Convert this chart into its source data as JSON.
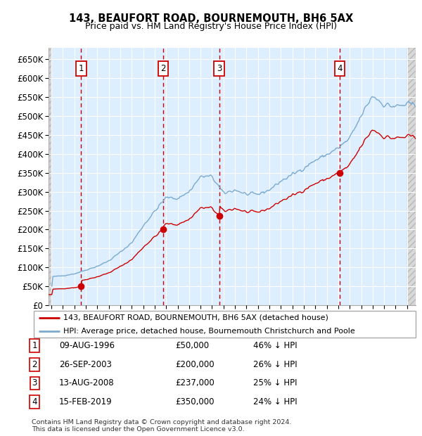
{
  "title": "143, BEAUFORT ROAD, BOURNEMOUTH, BH6 5AX",
  "subtitle": "Price paid vs. HM Land Registry's House Price Index (HPI)",
  "ylim": [
    0,
    680000
  ],
  "yticks": [
    0,
    50000,
    100000,
    150000,
    200000,
    250000,
    300000,
    350000,
    400000,
    450000,
    500000,
    550000,
    600000,
    650000
  ],
  "ytick_labels": [
    "£0",
    "£50K",
    "£100K",
    "£150K",
    "£200K",
    "£250K",
    "£300K",
    "£350K",
    "£400K",
    "£450K",
    "£500K",
    "£550K",
    "£600K",
    "£650K"
  ],
  "xlim_start": 1993.75,
  "xlim_end": 2025.75,
  "plot_bg_color": "#ddeeff",
  "grid_color": "#ffffff",
  "sale_color": "#cc0000",
  "hpi_color": "#7aaad0",
  "transactions": [
    {
      "num": 1,
      "year": 1996.6,
      "price": 50000,
      "date": "09-AUG-1996",
      "pct": "46% ↓ HPI"
    },
    {
      "num": 2,
      "year": 2003.73,
      "price": 200000,
      "date": "26-SEP-2003",
      "pct": "26% ↓ HPI"
    },
    {
      "num": 3,
      "year": 2008.62,
      "price": 237000,
      "date": "13-AUG-2008",
      "pct": "25% ↓ HPI"
    },
    {
      "num": 4,
      "year": 2019.12,
      "price": 350000,
      "date": "15-FEB-2019",
      "pct": "24% ↓ HPI"
    }
  ],
  "legend_sale_label": "143, BEAUFORT ROAD, BOURNEMOUTH, BH6 5AX (detached house)",
  "legend_hpi_label": "HPI: Average price, detached house, Bournemouth Christchurch and Poole",
  "table_rows": [
    [
      "1",
      "09-AUG-1996",
      "£50,000",
      "46% ↓ HPI"
    ],
    [
      "2",
      "26-SEP-2003",
      "£200,000",
      "26% ↓ HPI"
    ],
    [
      "3",
      "13-AUG-2008",
      "£237,000",
      "25% ↓ HPI"
    ],
    [
      "4",
      "15-FEB-2019",
      "£350,000",
      "24% ↓ HPI"
    ]
  ],
  "footer": "Contains HM Land Registry data © Crown copyright and database right 2024.\nThis data is licensed under the Open Government Licence v3.0."
}
